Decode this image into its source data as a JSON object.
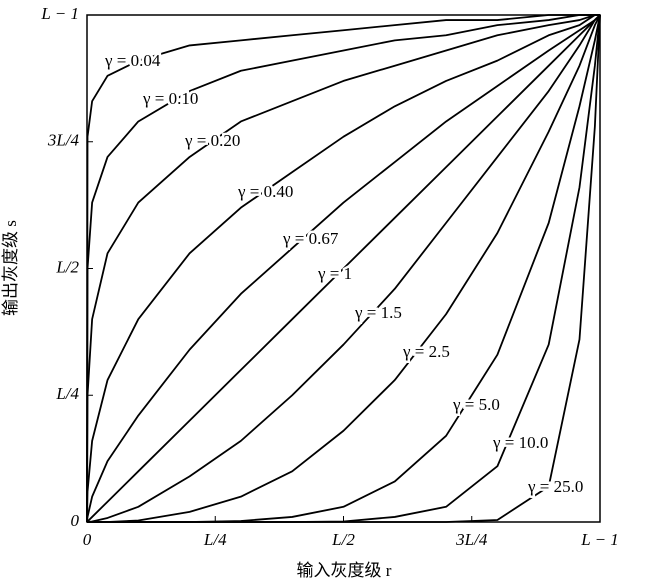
{
  "chart_data": {
    "type": "line",
    "x_label": "输入灰度级 r",
    "y_label": "输出灰度级 s",
    "x": [
      0,
      0.001,
      0.01,
      0.04,
      0.1,
      0.2,
      0.3,
      0.4,
      0.5,
      0.6,
      0.7,
      0.8,
      0.9,
      0.96,
      0.99,
      1
    ],
    "xlim": [
      0,
      1
    ],
    "ylim": [
      0,
      1
    ],
    "xticks": [
      0,
      {
        "value": 0.25,
        "label": "L/4"
      },
      {
        "value": 0.5,
        "label": "L/2"
      },
      {
        "value": 0.75,
        "label": "3L/4"
      },
      {
        "value": 1,
        "label": "L − 1"
      }
    ],
    "yticks": [
      0,
      {
        "value": 0.25,
        "label": "L/4"
      },
      {
        "value": 0.5,
        "label": "L/2"
      },
      {
        "value": 0.75,
        "label": "3L/4"
      },
      {
        "value": 1,
        "label": "L − 1"
      }
    ],
    "series": [
      {
        "name": "γ = 0.04",
        "color": "#000",
        "values": [
          0,
          0.76,
          0.83,
          0.88,
          0.91,
          0.94,
          0.95,
          0.96,
          0.97,
          0.98,
          0.99,
          0.99,
          1,
          1,
          1,
          1
        ]
      },
      {
        "name": "γ = 0.10",
        "color": "#000",
        "values": [
          0,
          0.5,
          0.63,
          0.72,
          0.79,
          0.85,
          0.89,
          0.91,
          0.93,
          0.95,
          0.96,
          0.98,
          0.99,
          1,
          1,
          1
        ]
      },
      {
        "name": "γ = 0.20",
        "color": "#000",
        "values": [
          0,
          0.25,
          0.4,
          0.53,
          0.63,
          0.72,
          0.79,
          0.83,
          0.87,
          0.9,
          0.93,
          0.96,
          0.98,
          0.99,
          1,
          1
        ]
      },
      {
        "name": "γ = 0.40",
        "color": "#000",
        "values": [
          0,
          0.06,
          0.16,
          0.28,
          0.4,
          0.53,
          0.62,
          0.69,
          0.76,
          0.82,
          0.87,
          0.91,
          0.96,
          0.98,
          1,
          1
        ]
      },
      {
        "name": "γ = 0.67",
        "color": "#000",
        "values": [
          0,
          0.01,
          0.05,
          0.12,
          0.21,
          0.34,
          0.45,
          0.54,
          0.63,
          0.71,
          0.79,
          0.86,
          0.93,
          0.97,
          0.99,
          1
        ]
      },
      {
        "name": "γ = 1",
        "color": "#000",
        "values": [
          0,
          0.001,
          0.01,
          0.04,
          0.1,
          0.2,
          0.3,
          0.4,
          0.5,
          0.6,
          0.7,
          0.8,
          0.9,
          0.96,
          0.99,
          1
        ]
      },
      {
        "name": "γ = 1.5",
        "color": "#000",
        "values": [
          0,
          0,
          0.001,
          0.008,
          0.03,
          0.09,
          0.16,
          0.25,
          0.35,
          0.46,
          0.59,
          0.72,
          0.85,
          0.94,
          0.99,
          1
        ]
      },
      {
        "name": "γ = 2.5",
        "color": "#000",
        "values": [
          0,
          0,
          0,
          0,
          0.003,
          0.02,
          0.05,
          0.1,
          0.18,
          0.28,
          0.41,
          0.57,
          0.77,
          0.9,
          0.98,
          1
        ]
      },
      {
        "name": "γ = 5.0",
        "color": "#000",
        "values": [
          0,
          0,
          0,
          0,
          0,
          0,
          0.002,
          0.01,
          0.03,
          0.08,
          0.17,
          0.33,
          0.59,
          0.82,
          0.95,
          1
        ]
      },
      {
        "name": "γ = 10.0",
        "color": "#000",
        "values": [
          0,
          0,
          0,
          0,
          0,
          0,
          0,
          0,
          0.001,
          0.01,
          0.03,
          0.11,
          0.35,
          0.66,
          0.9,
          1
        ]
      },
      {
        "name": "γ = 25.0",
        "color": "#000",
        "values": [
          0,
          0,
          0,
          0,
          0,
          0,
          0,
          0,
          0,
          0,
          0,
          0.004,
          0.07,
          0.36,
          0.78,
          1
        ]
      }
    ]
  }
}
